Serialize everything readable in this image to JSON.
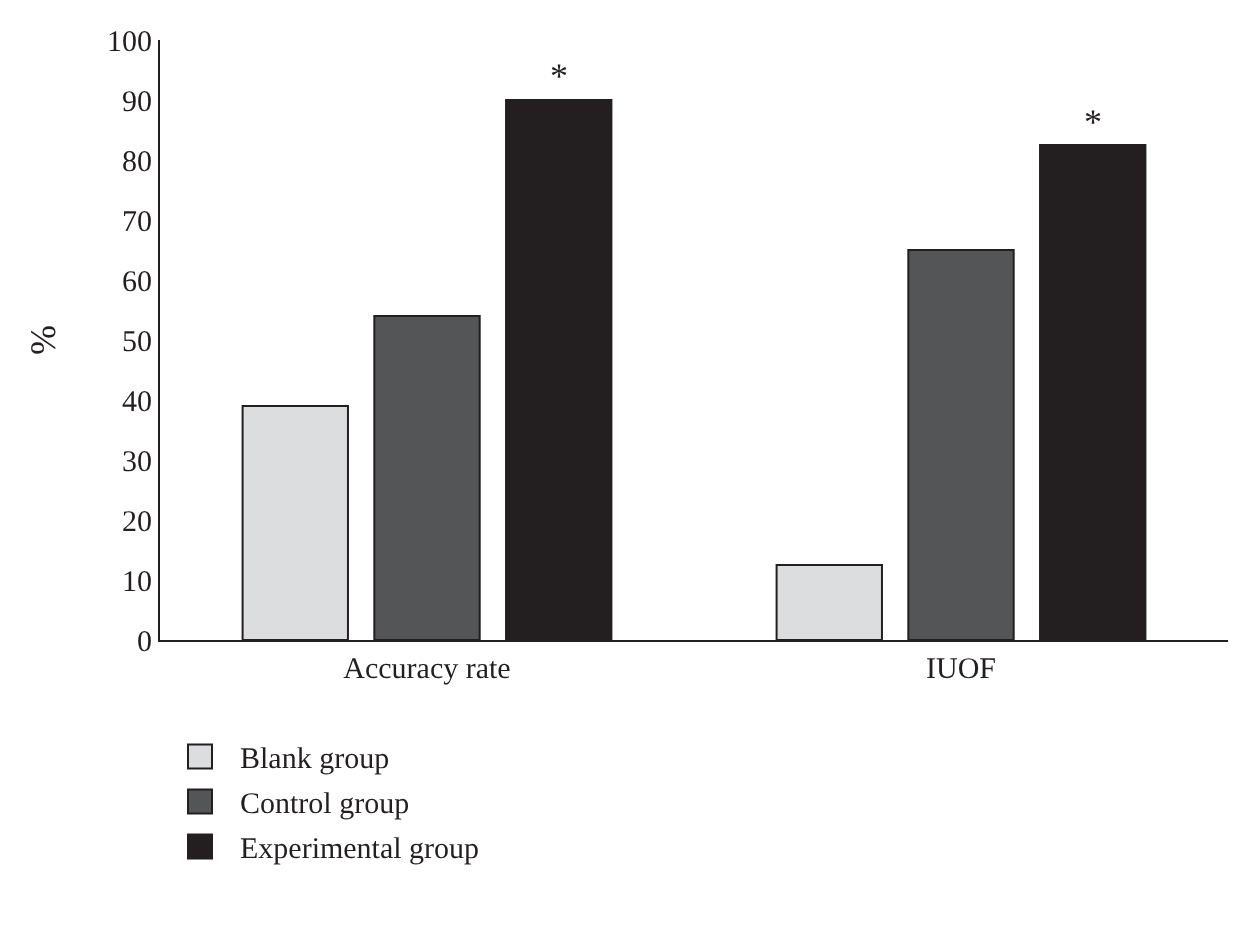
{
  "chart_data": {
    "type": "bar",
    "ylabel": "%",
    "categories": [
      "Accuracy rate",
      "IUOF"
    ],
    "series": [
      {
        "name": "Blank group",
        "color": "#dcdddf",
        "values": [
          39,
          12.5
        ]
      },
      {
        "name": "Control group",
        "color": "#545556",
        "values": [
          54,
          65
        ]
      },
      {
        "name": "Experimental group",
        "color": "#231f20",
        "values": [
          90,
          82.5
        ]
      }
    ],
    "ylim": [
      0,
      100
    ],
    "yticks": [
      0,
      10,
      20,
      30,
      40,
      50,
      60,
      70,
      80,
      90,
      100
    ],
    "grid": false,
    "legend": "bottom left",
    "annotations": [
      "*",
      "*"
    ]
  }
}
